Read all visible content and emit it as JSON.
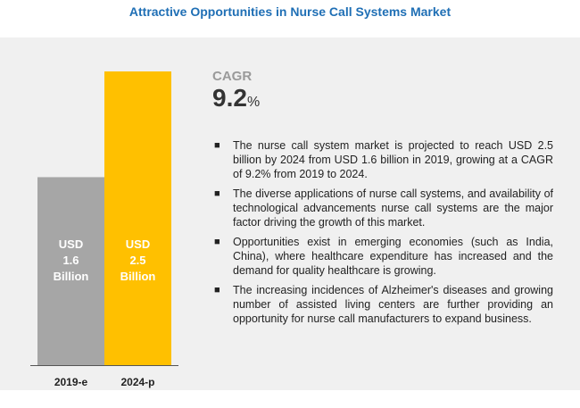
{
  "page": {
    "title": "Attractive Opportunities in Nurse Call Systems Market"
  },
  "cagr": {
    "label": "CAGR",
    "value": "9.2",
    "unit": "%"
  },
  "bullets": [
    "The nurse call system market is projected to reach USD 2.5 billion by 2024 from USD 1.6 billion in 2019, growing at a CAGR of 9.2% from 2019 to 2024.",
    "The diverse applications of nurse call systems, and availability of technological advancements nurse call systems are the major factor driving the growth of this market.",
    "Opportunities exist in emerging economies (such as India, China), where healthcare expenditure has increased and the demand for quality healthcare is growing.",
    "The increasing incidences of Alzheimer's diseases and growing number of assisted living centers are further providing an opportunity for nurse call manufacturers to expand business."
  ],
  "chart_data": {
    "type": "bar",
    "categories": [
      "2019-e",
      "2024-p"
    ],
    "values": [
      1.6,
      2.5
    ],
    "data_labels": [
      [
        "USD",
        "1.6",
        "Billion"
      ],
      [
        "USD",
        "2.5",
        "Billion"
      ]
    ],
    "colors": [
      "#a6a6a6",
      "#ffc000"
    ],
    "ylim": [
      0,
      2.5
    ],
    "grid": false,
    "legend": "none"
  }
}
